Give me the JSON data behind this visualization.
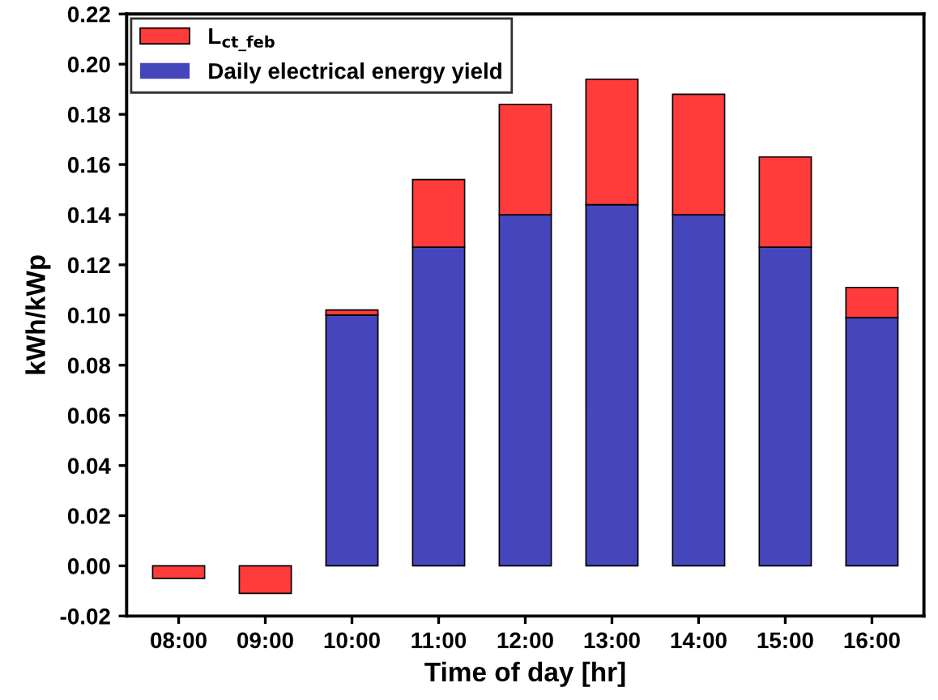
{
  "chart_data": {
    "type": "bar",
    "stacked": true,
    "xlabel": "Time of day [hr]",
    "ylabel": "kWh/kWp",
    "categories": [
      "08:00",
      "09:00",
      "10:00",
      "11:00",
      "12:00",
      "13:00",
      "14:00",
      "15:00",
      "16:00"
    ],
    "series": [
      {
        "name": "Daily electrical energy yield",
        "color": "#4646bc",
        "values": [
          0,
          0,
          0.1,
          0.127,
          0.14,
          0.144,
          0.14,
          0.127,
          0.099
        ]
      },
      {
        "name": "L$_{ct_feb}$",
        "color": "#ff3b3b",
        "values": [
          -0.005,
          -0.011,
          0.002,
          0.027,
          0.044,
          0.05,
          0.048,
          0.036,
          0.012
        ]
      }
    ],
    "ylim": [
      -0.02,
      0.22
    ],
    "yticks": [
      -0.02,
      {
        "value": 0,
        "label": "0.00"
      },
      0.02,
      0.04,
      0.06,
      0.08,
      {
        "value": 0.1,
        "label": "0.10"
      },
      0.12,
      0.14,
      0.16,
      0.18,
      {
        "value": 0.2,
        "label": "0.20"
      },
      0.22
    ],
    "legend": "top left",
    "grid": false
  }
}
